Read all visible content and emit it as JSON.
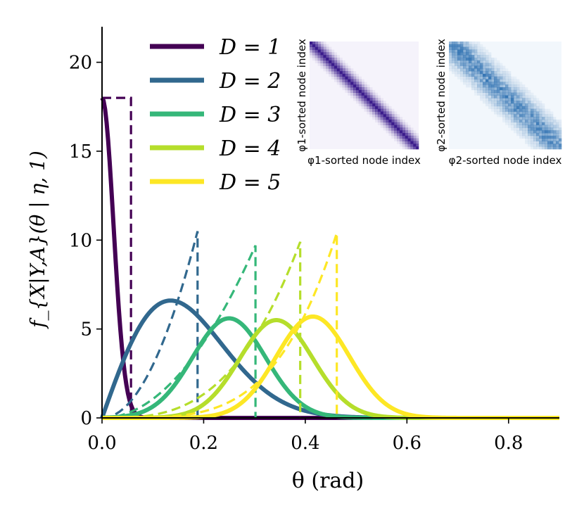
{
  "chart_data": {
    "type": "line",
    "title": "",
    "xlabel": "θ (rad)",
    "ylabel": "f_{X|Y,A}(θ | η, 1)",
    "xlim": [
      0.0,
      0.9
    ],
    "ylim": [
      0,
      22
    ],
    "xticks": [
      0.0,
      0.2,
      0.4,
      0.6,
      0.8
    ],
    "xtick_labels": [
      "0.0",
      "0.2",
      "0.4",
      "0.6",
      "0.8"
    ],
    "yticks": [
      0,
      5,
      10,
      15,
      20
    ],
    "ytick_labels": [
      "0",
      "5",
      "10",
      "15",
      "20"
    ],
    "legend": {
      "placement": "top-left",
      "entries": [
        "D = 1",
        "D = 2",
        "D = 3",
        "D = 4",
        "D = 5"
      ]
    },
    "series": [
      {
        "name": "D = 1",
        "color": "#440154",
        "solid": {
          "kind": "halfgauss",
          "peak": 18.0,
          "sigma": 0.0225
        },
        "dashed": {
          "x": [
            0.0,
            0.057,
            0.057
          ],
          "y": [
            18.0,
            18.0,
            0.0
          ]
        }
      },
      {
        "name": "D = 2",
        "color": "#31688e",
        "solid": {
          "kind": "rayleigh",
          "peak": 6.6,
          "mode": 0.135
        },
        "dashed": {
          "kind": "power",
          "k": 2,
          "cutoff": 0.188,
          "top": 10.5
        }
      },
      {
        "name": "D = 3",
        "color": "#35b779",
        "solid": {
          "kind": "gauss",
          "peak": 5.6,
          "mode": 0.25,
          "sigma": 0.072
        },
        "dashed": {
          "kind": "power",
          "k": 2,
          "cutoff": 0.302,
          "top": 9.7
        }
      },
      {
        "name": "D = 4",
        "color": "#b5de2b",
        "solid": {
          "kind": "gauss",
          "peak": 5.5,
          "mode": 0.343,
          "sigma": 0.072
        },
        "dashed": {
          "kind": "power",
          "k": 3,
          "cutoff": 0.39,
          "top": 9.9
        }
      },
      {
        "name": "D = 5",
        "color": "#fde725",
        "solid": {
          "kind": "gauss",
          "peak": 5.7,
          "mode": 0.415,
          "sigma": 0.072
        },
        "dashed": {
          "kind": "power",
          "k": 4,
          "cutoff": 0.462,
          "top": 10.4
        }
      }
    ],
    "insets": [
      {
        "name": "inset-1",
        "ylabel": "φ1-sorted node index",
        "xlabel": "φ1-sorted node index",
        "color": "#3b1c8c",
        "bg": "#f5f3fb"
      },
      {
        "name": "inset-2",
        "ylabel": "φ2-sorted node index",
        "xlabel": "φ2-sorted node index",
        "color": "#2c6fb0",
        "bg": "#f2f7fc"
      }
    ]
  }
}
